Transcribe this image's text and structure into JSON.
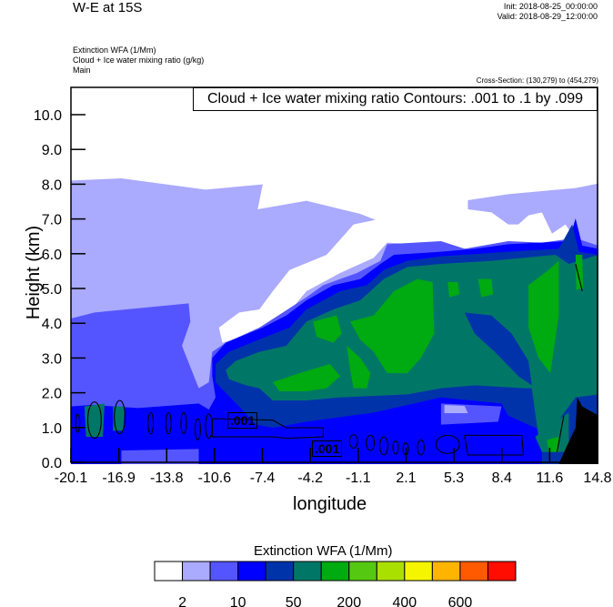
{
  "header": {
    "title": "W-E at 15S",
    "init": "Init: 2018-08-25_00:00:00",
    "valid": "Valid: 2018-08-29_12:00:00",
    "subtitles": [
      "Extinction WFA   (1/Mm)",
      "Cloud + Ice water mixing ratio   (g/kg)",
      "Main"
    ],
    "cross_section": "Cross-Section: (130,279) to (454,279)"
  },
  "chart_data": {
    "type": "heatmap",
    "title": "W-E at 15S",
    "xlabel": "longitude",
    "ylabel": "Height (km)",
    "xlim": [
      -20.1,
      14.8
    ],
    "ylim": [
      0,
      10.75
    ],
    "x_ticks": [
      "-20.1",
      "-16.9",
      "-13.8",
      "-10.6",
      "-7.4",
      "-4.2",
      "-1.1",
      "2.1",
      "5.3",
      "8.4",
      "11.6",
      "14.8"
    ],
    "y_ticks": [
      "0.0",
      "1.0",
      "2.0",
      "3.0",
      "4.0",
      "5.0",
      "6.0",
      "7.0",
      "8.0",
      "9.0",
      "10.0"
    ],
    "y_tick_values": [
      0,
      1,
      2,
      3,
      4,
      5,
      6,
      7,
      8,
      9,
      10
    ],
    "contour_title": "Cloud + Ice water mixing ratio Contours: .001 to .1 by .099",
    "contour_labels": [
      ".001",
      ".001"
    ],
    "colorbar": {
      "title": "Extinction WFA  (1/Mm)",
      "colors": [
        "#ffffff",
        "#aaaaff",
        "#5555ff",
        "#0000ff",
        "#0033aa",
        "#007766",
        "#00aa11",
        "#55c811",
        "#aae000",
        "#f5f500",
        "#ffb400",
        "#ff5a00",
        "#ff0d00"
      ],
      "labels": [
        "2",
        "10",
        "50",
        "200",
        "400",
        "600"
      ],
      "levels": [
        2,
        5,
        10,
        20,
        50,
        100,
        200,
        300,
        400,
        500,
        600,
        700
      ]
    }
  }
}
